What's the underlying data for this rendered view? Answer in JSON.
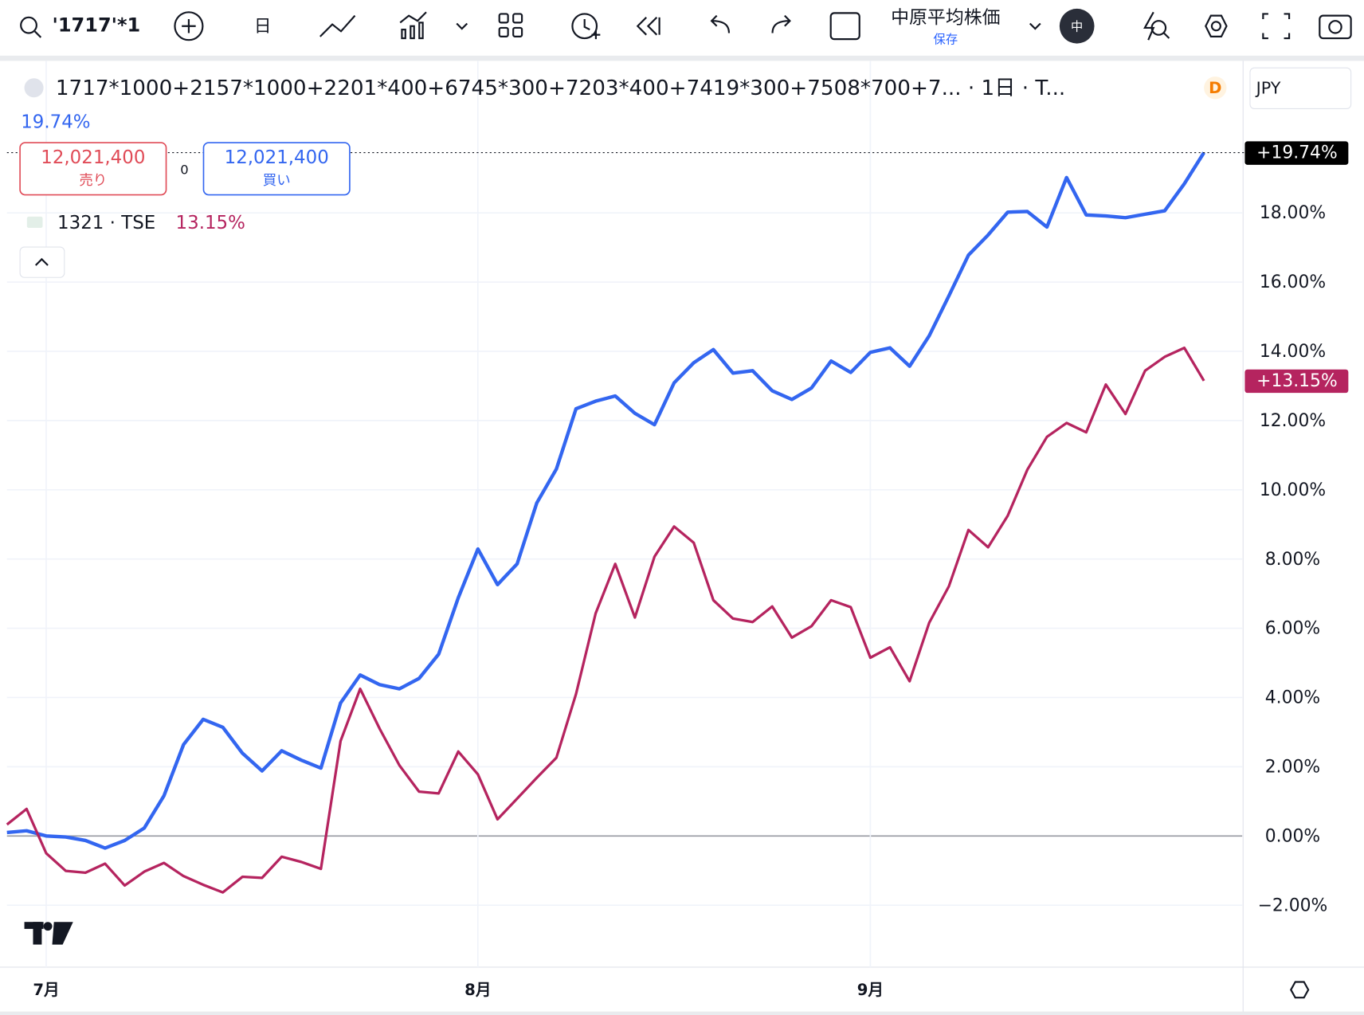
{
  "toolbar": {
    "symbol": "'1717'*1",
    "interval": "日",
    "layout_name": "中原平均株価",
    "layout_status": "保存",
    "avatar": "中"
  },
  "legend": {
    "formula": "1717*1000+2157*1000+2201*400+6745*300+7203*400+7419*300+7508*700+7... · 1日 · T...",
    "badge": "D",
    "main_change": "19.74%",
    "sell_price": "12,021,400",
    "sell_label": "売り",
    "spread": "0",
    "buy_price": "12,021,400",
    "buy_label": "買い",
    "compare_symbol": "1321 · TSE",
    "compare_change": "13.15%",
    "currency": "JPY"
  },
  "chart_data": {
    "type": "line",
    "categories": [
      null,
      null,
      "7月",
      null,
      null,
      null,
      null,
      null,
      null,
      null,
      null,
      null,
      null,
      null,
      null,
      null,
      null,
      null,
      null,
      null,
      null,
      null,
      null,
      null,
      "8月",
      null,
      null,
      null,
      null,
      null,
      null,
      null,
      null,
      null,
      null,
      null,
      null,
      null,
      null,
      null,
      null,
      null,
      null,
      null,
      "9月",
      null,
      null,
      null,
      null,
      null,
      null,
      null,
      null,
      null,
      null,
      null,
      null,
      null,
      null,
      null,
      null,
      null
    ],
    "series": [
      {
        "name": "'1717'*1",
        "color": "#3366f0",
        "last_label": "+19.74%",
        "values": [
          0.1,
          0.15,
          0,
          -0.03,
          -0.13,
          -0.35,
          -0.13,
          0.23,
          1.16,
          2.64,
          3.37,
          3.14,
          2.39,
          1.88,
          2.46,
          2.19,
          1.96,
          3.84,
          4.65,
          4.37,
          4.25,
          4.55,
          5.25,
          6.88,
          8.29,
          7.26,
          7.86,
          9.62,
          10.6,
          12.34,
          12.56,
          12.71,
          12.21,
          11.88,
          13.09,
          13.67,
          14.05,
          13.37,
          13.44,
          12.86,
          12.61,
          12.94,
          13.72,
          13.39,
          13.97,
          14.1,
          13.57,
          14.45,
          15.6,
          16.78,
          17.36,
          18.02,
          18.04,
          17.59,
          19.02,
          17.94,
          17.91,
          17.86,
          17.96,
          18.06,
          18.84,
          19.74
        ]
      },
      {
        "name": "1321 · TSE",
        "color": "#b5245f",
        "last_label": "+13.15%",
        "values": [
          0.33,
          0.78,
          -0.5,
          -1.01,
          -1.06,
          -0.8,
          -1.43,
          -1.03,
          -0.78,
          -1.16,
          -1.41,
          -1.63,
          -1.18,
          -1.21,
          -0.6,
          -0.75,
          -0.95,
          2.74,
          4.25,
          3.09,
          2.04,
          1.28,
          1.23,
          2.44,
          1.78,
          0.48,
          1.08,
          1.68,
          2.26,
          4.1,
          6.43,
          7.86,
          6.31,
          8.07,
          8.94,
          8.47,
          6.81,
          6.28,
          6.18,
          6.63,
          5.73,
          6.06,
          6.81,
          6.61,
          5.15,
          5.45,
          4.47,
          6.16,
          7.21,
          8.84,
          8.34,
          9.25,
          10.58,
          11.53,
          11.93,
          11.66,
          13.04,
          12.19,
          13.44,
          13.84,
          14.1,
          13.15
        ]
      }
    ],
    "ylim": [
      -3.79,
      22.39
    ],
    "yticks": [
      {
        "value": -2,
        "label": "−2.00%"
      },
      {
        "value": 0,
        "label": "0.00%"
      },
      {
        "value": 2,
        "label": "2.00%"
      },
      {
        "value": 4,
        "label": "4.00%"
      },
      {
        "value": 6,
        "label": "6.00%"
      },
      {
        "value": 8,
        "label": "8.00%"
      },
      {
        "value": 10,
        "label": "10.00%"
      },
      {
        "value": 12,
        "label": "12.00%"
      },
      {
        "value": 14,
        "label": "14.00%"
      },
      {
        "value": 16,
        "label": "16.00%"
      },
      {
        "value": 18,
        "label": "18.00%"
      }
    ],
    "grid": true
  }
}
